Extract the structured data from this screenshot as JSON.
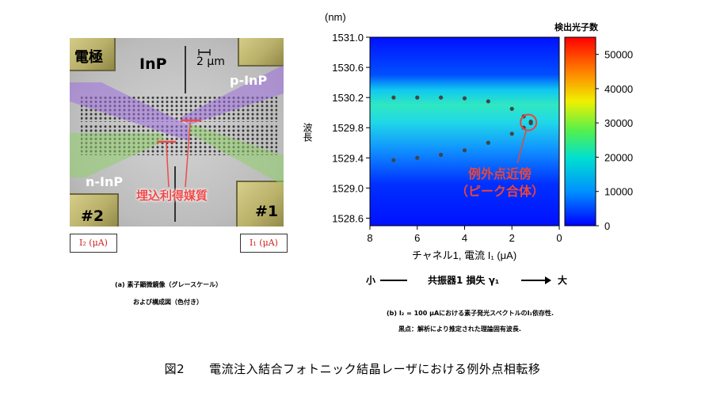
{
  "panel_a": {
    "labels": {
      "electrode": "電極",
      "inp": "InP",
      "scalebar": "2 μm",
      "p_inp": "p-InP",
      "n_inp": "n-InP",
      "buried_gain": "埋込利得媒質",
      "pad2": "#2",
      "pad1": "#1"
    },
    "current_boxes": {
      "left": "I₂ (μA)",
      "right": "I₁ (μA)"
    },
    "caption_line1": "(a)  素子顕微鏡像（グレースケール）",
    "caption_line2": "および構成図（色付き）"
  },
  "panel_b": {
    "y_unit": "(nm)",
    "y_label": "波長",
    "x_label": "チャネル1, 電流 I₁ (μA)",
    "colorbar_title": "検出光子数",
    "annotation_line1": "例外点近傍",
    "annotation_line2": "（ピーク合体）",
    "loss_axis": {
      "small": "小",
      "label": "共振器1 損失 γ₁",
      "large": "大"
    },
    "caption_line1": "(b)  I₂ = 100 μAにおける素子発光スペクトルのI₁依存性.",
    "caption_line2": "黒点：解析により推定された理論固有波長."
  },
  "figure_caption": "図2　　電流注入結合フォトニック結晶レーザにおける例外点相転移",
  "colors": {
    "annotation": "#e8453c",
    "current_box_text": "#d02020"
  },
  "chart_data": {
    "type": "heatmap",
    "xlabel": "チャネル1, 電流 I₁ (μA)",
    "ylabel": "波長 (nm)",
    "xlim": [
      8,
      0
    ],
    "ylim": [
      1528.5,
      1531.0
    ],
    "x_ticks": [
      8,
      6,
      4,
      2,
      0
    ],
    "y_ticks": [
      1531.0,
      1530.6,
      1530.2,
      1529.8,
      1529.4,
      1529.0,
      1528.6
    ],
    "colorbar": {
      "title": "検出光子数",
      "range": [
        0,
        55000
      ],
      "ticks": [
        0,
        10000,
        20000,
        30000,
        40000,
        50000
      ]
    },
    "series": [
      {
        "x": [
          7.0,
          6.0,
          5.0,
          4.0,
          3.0,
          2.0,
          1.5,
          1.2
        ],
        "y": [
          1530.2,
          1530.2,
          1530.2,
          1530.19,
          1530.15,
          1530.05,
          1529.95,
          1529.88
        ]
      },
      {
        "x": [
          7.0,
          6.0,
          5.0,
          4.0,
          3.0,
          2.0,
          1.5,
          1.2
        ],
        "y": [
          1529.37,
          1529.4,
          1529.44,
          1529.5,
          1529.6,
          1529.72,
          1529.8,
          1529.86
        ]
      }
    ],
    "exceptional_point": {
      "x": 1.3,
      "y": 1529.87
    }
  }
}
